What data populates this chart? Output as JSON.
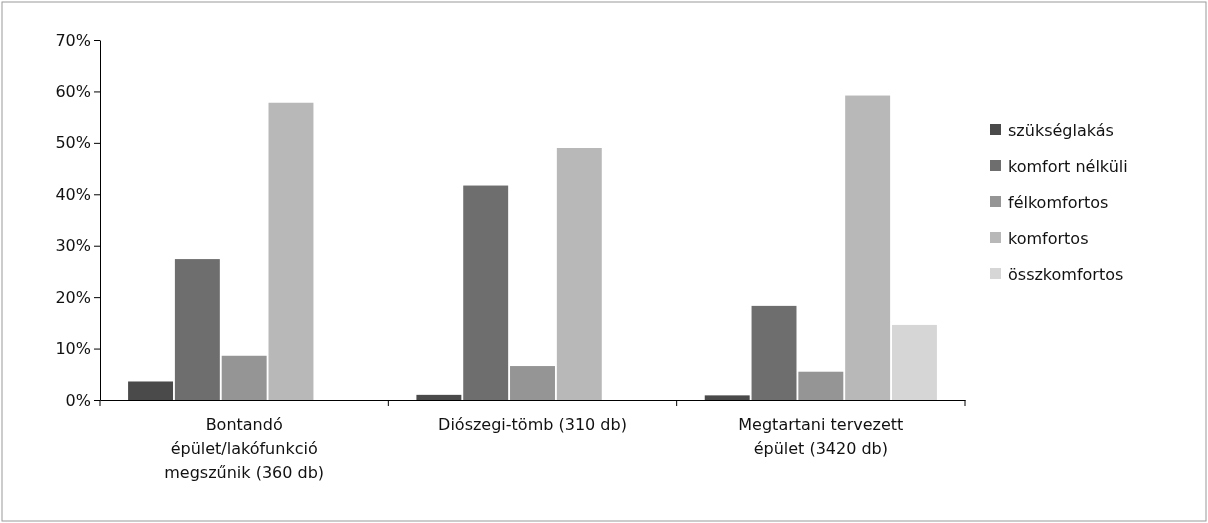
{
  "chart_data": {
    "type": "bar",
    "categories": [
      "Bontandó épület/lakófunkció megszűnik (360 db)",
      "Diószegi-tömb (310 db)",
      "Megtartani tervezett épület (3420 db)"
    ],
    "series": [
      {
        "name": "szükséglakás",
        "color": "#4a4a4a",
        "values": [
          3.6,
          1.0,
          0.9
        ]
      },
      {
        "name": "komfort nélküli",
        "color": "#6e6e6e",
        "values": [
          27.4,
          41.7,
          18.3
        ]
      },
      {
        "name": "félkomfortos",
        "color": "#959595",
        "values": [
          8.6,
          6.6,
          5.5
        ]
      },
      {
        "name": "komfortos",
        "color": "#b8b8b8",
        "values": [
          57.8,
          49.0,
          59.2
        ]
      },
      {
        "name": "összkomfortos",
        "color": "#d6d6d6",
        "values": [
          0,
          0,
          14.6
        ]
      }
    ],
    "ylim": [
      0,
      70
    ],
    "yticks": [
      {
        "value": 0,
        "label": "0%"
      },
      {
        "value": 10,
        "label": "10%"
      },
      {
        "value": 20,
        "label": "20%"
      },
      {
        "value": 30,
        "label": "30%"
      },
      {
        "value": 40,
        "label": "40%"
      },
      {
        "value": 50,
        "label": "50%"
      },
      {
        "value": 60,
        "label": "60%"
      },
      {
        "value": 70,
        "label": "70%"
      }
    ],
    "grid": false,
    "legend": "right"
  }
}
